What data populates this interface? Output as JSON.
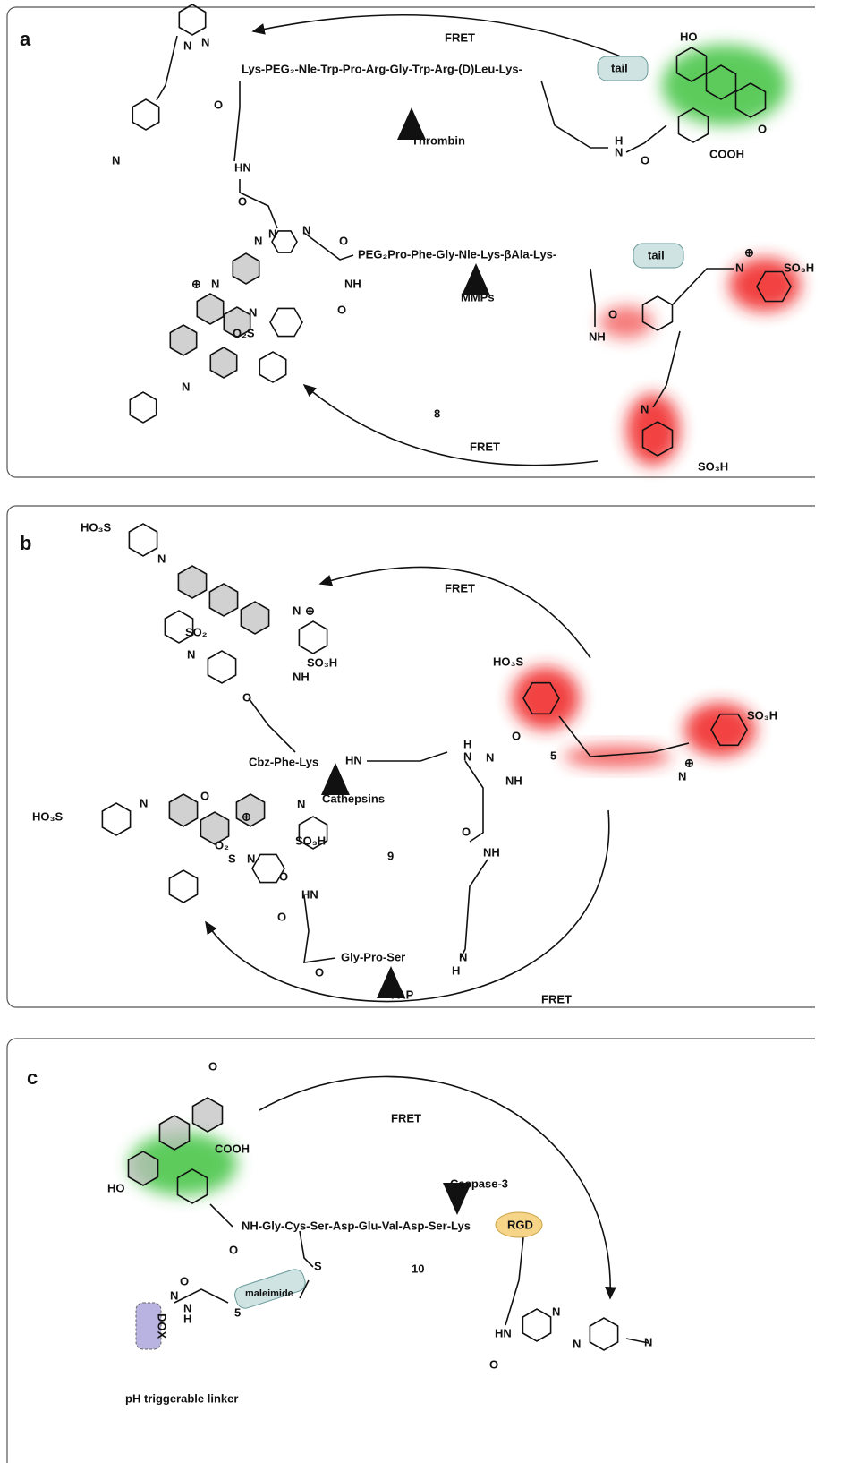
{
  "panels": [
    {
      "labels": [
        "a",
        "FRET",
        "HO",
        "N",
        "N",
        "O",
        "Lys-PEG₂-Nle-Trp-Pro-Arg-Gly-Trp-Arg-(D)Leu-Lys-",
        "tail",
        "Thrombin",
        "N",
        "H",
        "N",
        "COOH",
        "O",
        "O",
        "HN",
        "O",
        "N",
        "N",
        "N",
        "O",
        "PEG₂Pro-Phe-Gly-Nle-Lys-βAla-Lys-",
        "tail",
        "N",
        "⊕",
        "NH",
        "MMPs",
        "N",
        "⊕",
        "SO₃H",
        "N",
        "O₂S",
        "O",
        "O",
        "NH",
        "N",
        "8",
        "FRET",
        "N",
        "SO₃H"
      ]
    },
    {
      "labels": [
        "b",
        "HO₃S",
        "N",
        "FRET",
        "N",
        "⊕",
        "SO₃H",
        "SO₂",
        "N",
        "NH",
        "O",
        "HO₃S",
        "Cbz-Phe-Lys",
        "HN",
        "Cathepsins",
        "H",
        "N",
        "O",
        "5",
        "N",
        "NH",
        "O",
        "SO₃H",
        "N",
        "⊕",
        "HO₃S",
        "N",
        "O",
        "N",
        "⊕",
        "SO₃H",
        "O₂",
        "S",
        "N",
        "O",
        "NH",
        "9",
        "HN",
        "O",
        "Gly-Pro-Ser",
        "N",
        "H",
        "O",
        "FAP",
        "FRET"
      ]
    },
    {
      "labels": [
        "c",
        "O",
        "FRET",
        "COOH",
        "Caspase-3",
        "HO",
        "NH-Gly-Cys-Ser-Asp-Glu-Val-Asp-Ser-Lys",
        "RGD",
        "O",
        "S",
        "10",
        "maleimide",
        "O",
        "5",
        "N",
        "N",
        "H",
        "DOX",
        "HN",
        "N",
        "N",
        "O",
        "N",
        "pH triggerable linker"
      ]
    }
  ]
}
